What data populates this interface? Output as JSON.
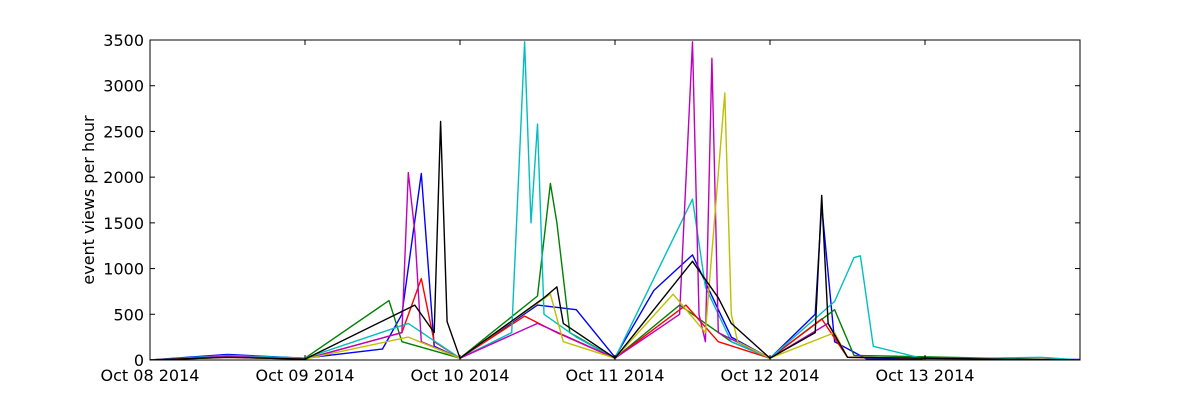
{
  "chart_data": {
    "type": "line",
    "title": "",
    "xlabel": "",
    "ylabel": "event views per hour",
    "xlim": [
      "2014-10-08 00:00",
      "2014-10-14 00:00"
    ],
    "ylim": [
      0,
      3500
    ],
    "x_ticks": [
      "2014-10-08",
      "2014-10-09",
      "2014-10-10",
      "2014-10-11",
      "2014-10-12",
      "2014-10-13"
    ],
    "x_tick_labels": [
      "Oct 08 2014",
      "Oct 09 2014",
      "Oct 10 2014",
      "Oct 11 2014",
      "Oct 12 2014",
      "Oct 13 2014"
    ],
    "y_ticks": [
      0,
      500,
      1000,
      1500,
      2000,
      2500,
      3000,
      3500
    ],
    "y_tick_labels": [
      "0",
      "500",
      "1000",
      "1500",
      "2000",
      "2500",
      "3000",
      "3500"
    ],
    "grid": false,
    "legend": "none",
    "series": [
      {
        "color": "#0000ff",
        "points": [
          [
            "2014-10-08 00:00",
            0
          ],
          [
            "2014-10-08 12:00",
            60
          ],
          [
            "2014-10-09 00:00",
            20
          ],
          [
            "2014-10-09 12:00",
            120
          ],
          [
            "2014-10-09 15:00",
            500
          ],
          [
            "2014-10-09 18:00",
            2040
          ],
          [
            "2014-10-09 20:00",
            150
          ],
          [
            "2014-10-10 00:00",
            20
          ],
          [
            "2014-10-10 12:00",
            600
          ],
          [
            "2014-10-10 18:00",
            550
          ],
          [
            "2014-10-11 00:00",
            30
          ],
          [
            "2014-10-11 06:00",
            760
          ],
          [
            "2014-10-11 12:00",
            1150
          ],
          [
            "2014-10-11 18:00",
            250
          ],
          [
            "2014-10-12 00:00",
            20
          ],
          [
            "2014-10-12 07:00",
            500
          ],
          [
            "2014-10-12 08:00",
            1690
          ],
          [
            "2014-10-12 10:00",
            200
          ],
          [
            "2014-10-12 15:00",
            10
          ],
          [
            "2014-10-13 12:00",
            10
          ],
          [
            "2014-10-14 00:00",
            5
          ]
        ]
      },
      {
        "color": "#008000",
        "points": [
          [
            "2014-10-08 00:00",
            0
          ],
          [
            "2014-10-08 12:00",
            40
          ],
          [
            "2014-10-09 00:00",
            20
          ],
          [
            "2014-10-09 13:00",
            650
          ],
          [
            "2014-10-09 15:00",
            200
          ],
          [
            "2014-10-10 00:00",
            20
          ],
          [
            "2014-10-10 12:00",
            700
          ],
          [
            "2014-10-10 14:00",
            1930
          ],
          [
            "2014-10-10 15:00",
            1500
          ],
          [
            "2014-10-10 17:00",
            300
          ],
          [
            "2014-10-11 00:00",
            20
          ],
          [
            "2014-10-11 10:00",
            600
          ],
          [
            "2014-10-11 18:00",
            200
          ],
          [
            "2014-10-12 00:00",
            20
          ],
          [
            "2014-10-12 10:00",
            550
          ],
          [
            "2014-10-12 13:00",
            50
          ],
          [
            "2014-10-14 00:00",
            0
          ]
        ]
      },
      {
        "color": "#ff0000",
        "points": [
          [
            "2014-10-08 00:00",
            0
          ],
          [
            "2014-10-08 12:00",
            30
          ],
          [
            "2014-10-09 00:00",
            10
          ],
          [
            "2014-10-09 15:00",
            300
          ],
          [
            "2014-10-09 18:00",
            890
          ],
          [
            "2014-10-09 20:00",
            200
          ],
          [
            "2014-10-10 00:00",
            20
          ],
          [
            "2014-10-10 10:00",
            480
          ],
          [
            "2014-10-10 15:00",
            300
          ],
          [
            "2014-10-11 00:00",
            20
          ],
          [
            "2014-10-11 11:00",
            600
          ],
          [
            "2014-10-11 16:00",
            200
          ],
          [
            "2014-10-12 00:00",
            20
          ],
          [
            "2014-10-12 08:00",
            450
          ],
          [
            "2014-10-12 12:00",
            30
          ],
          [
            "2014-10-14 00:00",
            0
          ]
        ]
      },
      {
        "color": "#00bfbf",
        "points": [
          [
            "2014-10-08 00:00",
            0
          ],
          [
            "2014-10-08 12:00",
            50
          ],
          [
            "2014-10-09 00:00",
            20
          ],
          [
            "2014-10-09 16:00",
            400
          ],
          [
            "2014-10-10 00:00",
            20
          ],
          [
            "2014-10-10 08:00",
            300
          ],
          [
            "2014-10-10 10:00",
            3480
          ],
          [
            "2014-10-10 11:00",
            1500
          ],
          [
            "2014-10-10 12:00",
            2580
          ],
          [
            "2014-10-10 13:00",
            500
          ],
          [
            "2014-10-10 18:00",
            250
          ],
          [
            "2014-10-11 00:00",
            20
          ],
          [
            "2014-10-11 12:00",
            1760
          ],
          [
            "2014-10-11 14:00",
            800
          ],
          [
            "2014-10-11 18:00",
            200
          ],
          [
            "2014-10-12 00:00",
            20
          ],
          [
            "2014-10-12 10:00",
            640
          ],
          [
            "2014-10-12 13:00",
            1120
          ],
          [
            "2014-10-12 14:00",
            1140
          ],
          [
            "2014-10-12 16:00",
            150
          ],
          [
            "2014-10-13 00:00",
            10
          ],
          [
            "2014-10-13 18:00",
            30
          ],
          [
            "2014-10-14 00:00",
            0
          ]
        ]
      },
      {
        "color": "#bf00bf",
        "points": [
          [
            "2014-10-08 00:00",
            0
          ],
          [
            "2014-10-08 12:00",
            40
          ],
          [
            "2014-10-09 00:00",
            10
          ],
          [
            "2014-10-09 15:00",
            300
          ],
          [
            "2014-10-09 16:00",
            2050
          ],
          [
            "2014-10-09 17:00",
            1400
          ],
          [
            "2014-10-09 18:00",
            200
          ],
          [
            "2014-10-10 00:00",
            20
          ],
          [
            "2014-10-10 12:00",
            400
          ],
          [
            "2014-10-11 00:00",
            20
          ],
          [
            "2014-10-11 10:00",
            500
          ],
          [
            "2014-10-11 12:00",
            3480
          ],
          [
            "2014-10-11 13:00",
            500
          ],
          [
            "2014-10-11 14:00",
            200
          ],
          [
            "2014-10-11 15:00",
            3300
          ],
          [
            "2014-10-11 16:00",
            300
          ],
          [
            "2014-10-12 00:00",
            20
          ],
          [
            "2014-10-12 09:00",
            400
          ],
          [
            "2014-10-12 12:00",
            30
          ],
          [
            "2014-10-14 00:00",
            0
          ]
        ]
      },
      {
        "color": "#bfbf00",
        "points": [
          [
            "2014-10-08 00:00",
            0
          ],
          [
            "2014-10-08 12:00",
            30
          ],
          [
            "2014-10-09 00:00",
            10
          ],
          [
            "2014-10-09 16:00",
            250
          ],
          [
            "2014-10-10 00:00",
            20
          ],
          [
            "2014-10-10 14:00",
            720
          ],
          [
            "2014-10-10 16:00",
            200
          ],
          [
            "2014-10-11 00:00",
            20
          ],
          [
            "2014-10-11 09:00",
            720
          ],
          [
            "2014-10-11 14:00",
            300
          ],
          [
            "2014-10-11 17:00",
            2920
          ],
          [
            "2014-10-11 18:00",
            500
          ],
          [
            "2014-10-11 19:00",
            200
          ],
          [
            "2014-10-12 00:00",
            20
          ],
          [
            "2014-10-12 10:00",
            300
          ],
          [
            "2014-10-12 12:00",
            30
          ],
          [
            "2014-10-14 00:00",
            0
          ]
        ]
      },
      {
        "color": "#000000",
        "points": [
          [
            "2014-10-08 00:00",
            0
          ],
          [
            "2014-10-08 12:00",
            30
          ],
          [
            "2014-10-09 00:00",
            10
          ],
          [
            "2014-10-09 17:00",
            600
          ],
          [
            "2014-10-09 20:00",
            300
          ],
          [
            "2014-10-09 21:00",
            2610
          ],
          [
            "2014-10-09 22:00",
            420
          ],
          [
            "2014-10-10 00:00",
            20
          ],
          [
            "2014-10-10 13:00",
            680
          ],
          [
            "2014-10-10 15:00",
            800
          ],
          [
            "2014-10-10 16:00",
            400
          ],
          [
            "2014-10-11 00:00",
            20
          ],
          [
            "2014-10-11 12:00",
            1080
          ],
          [
            "2014-10-11 16:00",
            680
          ],
          [
            "2014-10-11 18:00",
            400
          ],
          [
            "2014-10-12 00:00",
            20
          ],
          [
            "2014-10-12 07:00",
            300
          ],
          [
            "2014-10-12 08:00",
            1800
          ],
          [
            "2014-10-12 09:00",
            400
          ],
          [
            "2014-10-12 12:00",
            30
          ],
          [
            "2014-10-14 00:00",
            0
          ]
        ]
      }
    ]
  }
}
